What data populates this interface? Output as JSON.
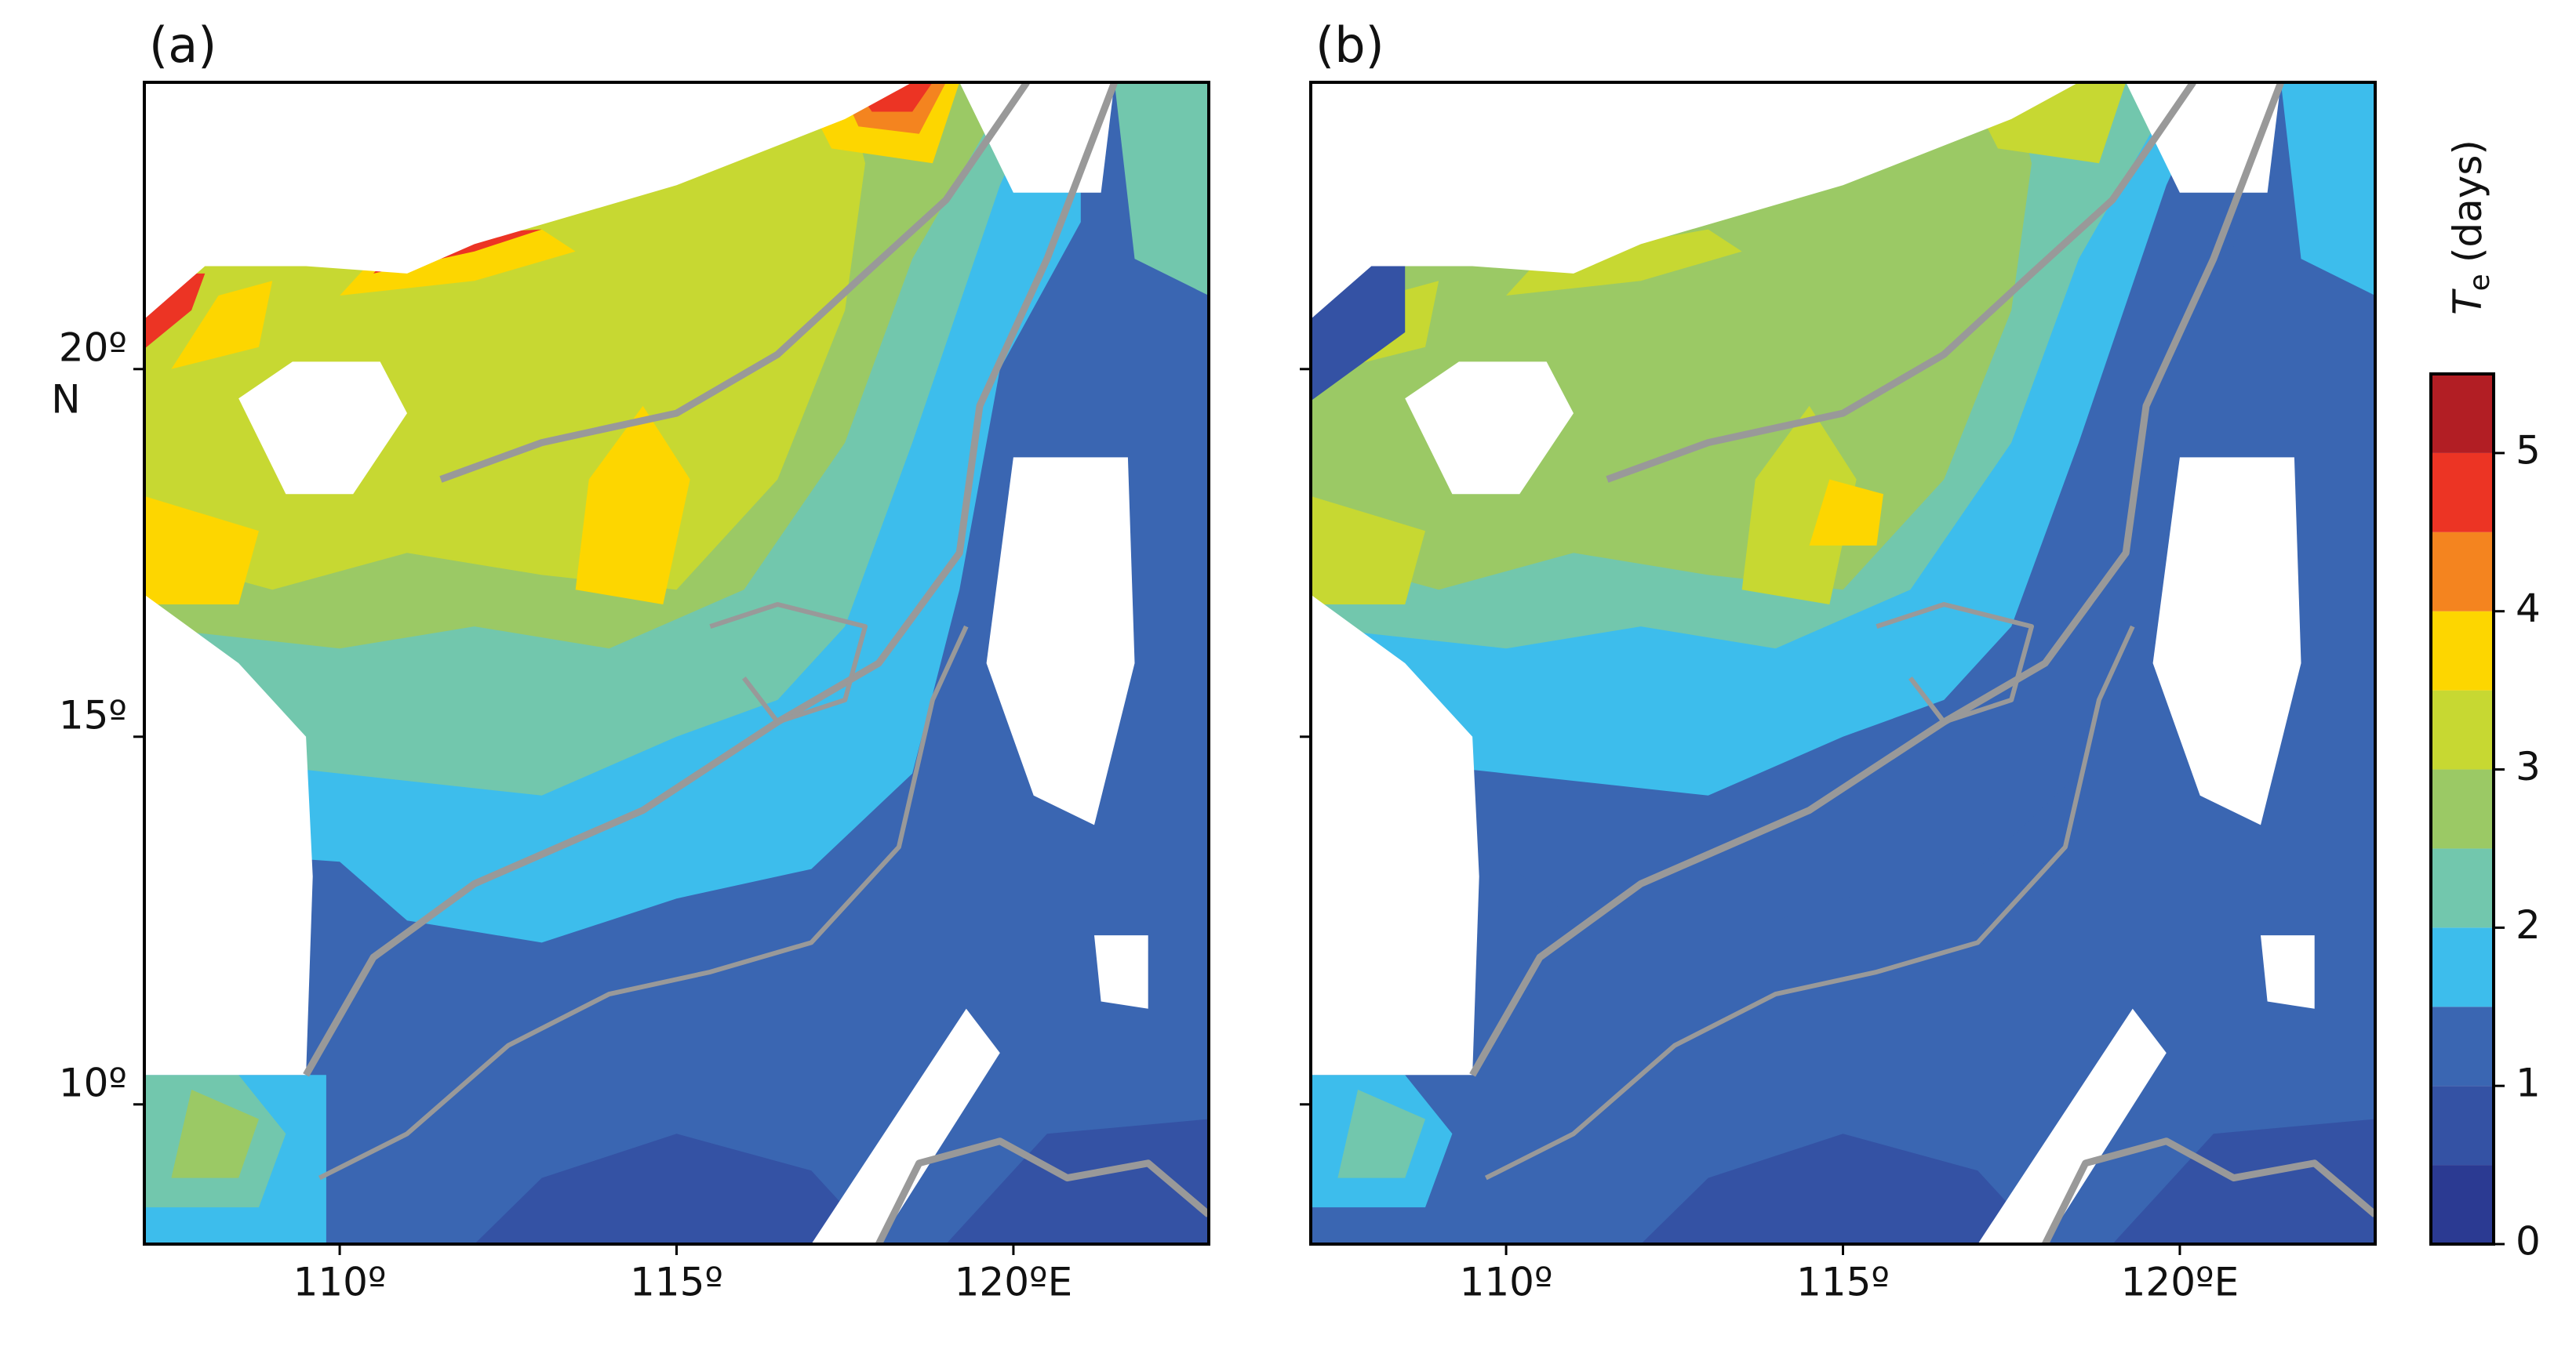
{
  "chart_data": [
    {
      "type": "contourf",
      "title": "(a)",
      "xlim": [
        107.1,
        122.9
      ],
      "ylim": [
        8.1,
        23.9
      ],
      "xticks": [
        {
          "value": 110,
          "label": "110º"
        },
        {
          "value": 115,
          "label": "115º"
        },
        {
          "value": 120,
          "label": "120ºE"
        }
      ],
      "yticks": [
        {
          "value": 10,
          "label": "10º"
        },
        {
          "value": 15,
          "label": "15º"
        },
        {
          "value": 20,
          "label": "20º"
        }
      ],
      "y_hemisphere_label": "N",
      "show_ytick_labels": true
    },
    {
      "type": "contourf",
      "title": "(b)",
      "xlim": [
        107.1,
        122.9
      ],
      "ylim": [
        8.1,
        23.9
      ],
      "xticks": [
        {
          "value": 110,
          "label": "110º"
        },
        {
          "value": 115,
          "label": "115º"
        },
        {
          "value": 120,
          "label": "120ºE"
        }
      ],
      "yticks": [
        10,
        15,
        20
      ],
      "show_ytick_labels": false,
      "colorbar": {
        "label": {
          "symbol": "T",
          "subscript": "e",
          "unit": "(days)"
        },
        "levels": [
          0,
          0.5,
          1,
          1.5,
          2,
          2.5,
          3,
          3.5,
          4,
          4.5,
          5,
          5.5
        ],
        "colors": [
          "#2b3a92",
          "#3452a4",
          "#3a66b2",
          "#3dbdec",
          "#72c7ad",
          "#9bc965",
          "#c7d832",
          "#fdd600",
          "#f4841f",
          "#ec3424",
          "#b21e24"
        ],
        "ticks": [
          0,
          1,
          2,
          3,
          4,
          5
        ]
      }
    }
  ]
}
